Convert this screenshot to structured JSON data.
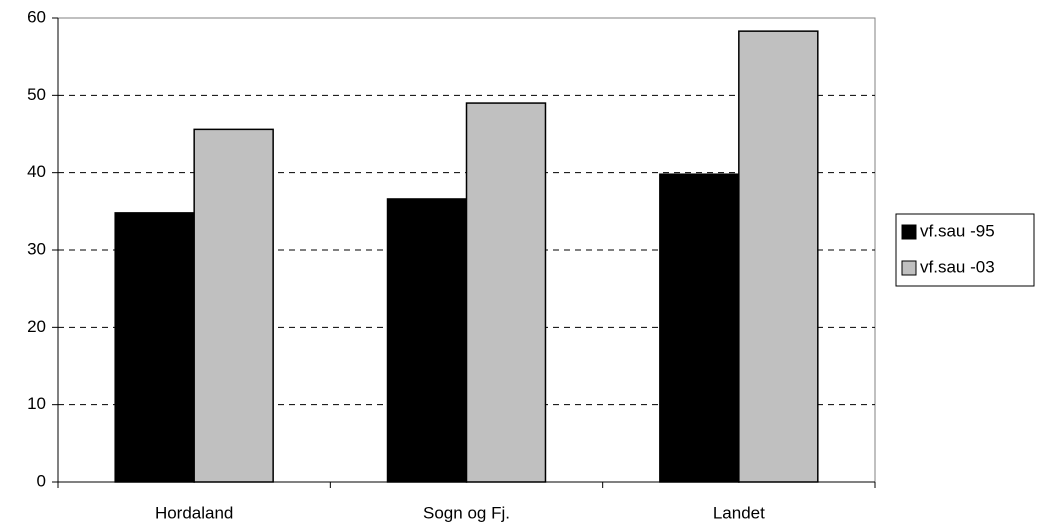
{
  "chart_data": {
    "type": "bar",
    "categories": [
      "Hordaland",
      "Sogn og Fj.",
      "Landet"
    ],
    "series": [
      {
        "name": "vf.sau -95",
        "color": "#000000",
        "values": [
          34.8,
          36.6,
          39.8
        ]
      },
      {
        "name": "vf.sau -03",
        "color": "#c0c0c0",
        "values": [
          45.6,
          49.0,
          58.3
        ]
      }
    ],
    "ylim": [
      0,
      60
    ],
    "yticks": [
      0,
      10,
      20,
      30,
      40,
      50,
      60
    ],
    "grid": true,
    "legend": "right"
  }
}
